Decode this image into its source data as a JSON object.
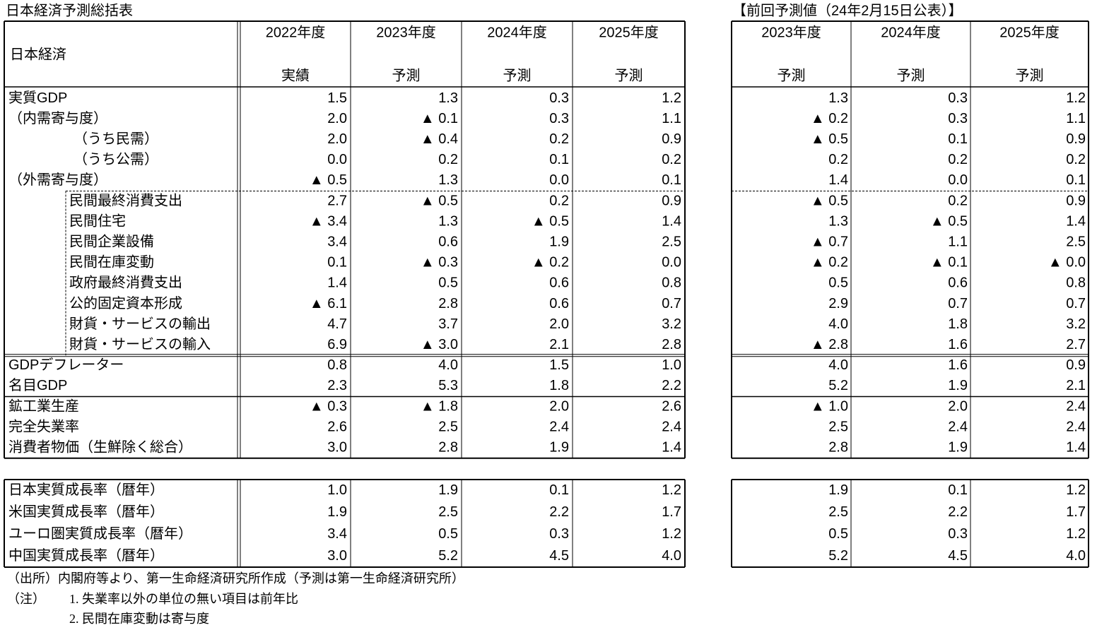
{
  "title": "日本経済予測総括表",
  "main": {
    "corner": "日本経済",
    "years": [
      "2022年度",
      "2023年度",
      "2024年度",
      "2025年度"
    ],
    "kinds": [
      "実績",
      "予測",
      "予測",
      "予測"
    ]
  },
  "previous": {
    "title": "【前回予測値（24年2月15日公表）】",
    "years": [
      "2023年度",
      "2024年度",
      "2025年度"
    ],
    "kinds": [
      "予測",
      "予測",
      "予測"
    ]
  },
  "rows": [
    {
      "label": "実質GDP",
      "values": [
        "1.5",
        "1.3",
        "0.3",
        "1.2"
      ],
      "previous": [
        "1.3",
        "0.3",
        "1.2"
      ]
    },
    {
      "label": "（内需寄与度）",
      "values": [
        "2.0",
        "▲ 0.1",
        "0.3",
        "1.1"
      ],
      "previous": [
        "▲ 0.2",
        "0.3",
        "1.1"
      ]
    },
    {
      "label": "（うち民需）",
      "values": [
        "2.0",
        "▲ 0.4",
        "0.2",
        "0.9"
      ],
      "previous": [
        "▲ 0.5",
        "0.1",
        "0.9"
      ]
    },
    {
      "label": "（うち公需）",
      "values": [
        "0.0",
        "0.2",
        "0.1",
        "0.2"
      ],
      "previous": [
        "0.2",
        "0.2",
        "0.2"
      ]
    },
    {
      "label": "（外需寄与度）",
      "values": [
        "▲ 0.5",
        "1.3",
        "0.0",
        "0.1"
      ],
      "previous": [
        "1.4",
        "0.0",
        "0.1"
      ]
    },
    {
      "label": "民間最終消費支出",
      "values": [
        "2.7",
        "▲ 0.5",
        "0.2",
        "0.9"
      ],
      "previous": [
        "▲ 0.5",
        "0.2",
        "0.9"
      ]
    },
    {
      "label": "民間住宅",
      "values": [
        "▲ 3.4",
        "1.3",
        "▲ 0.5",
        "1.4"
      ],
      "previous": [
        "1.3",
        "▲ 0.5",
        "1.4"
      ]
    },
    {
      "label": "民間企業設備",
      "values": [
        "3.4",
        "0.6",
        "1.9",
        "2.5"
      ],
      "previous": [
        "▲ 0.7",
        "1.1",
        "2.5"
      ]
    },
    {
      "label": "民間在庫変動",
      "values": [
        "0.1",
        "▲ 0.3",
        "▲ 0.2",
        "0.0"
      ],
      "previous": [
        "▲ 0.2",
        "▲ 0.1",
        "▲ 0.0"
      ]
    },
    {
      "label": "政府最終消費支出",
      "values": [
        "1.4",
        "0.5",
        "0.6",
        "0.8"
      ],
      "previous": [
        "0.5",
        "0.6",
        "0.8"
      ]
    },
    {
      "label": "公的固定資本形成",
      "values": [
        "▲ 6.1",
        "2.8",
        "0.6",
        "0.7"
      ],
      "previous": [
        "2.9",
        "0.7",
        "0.7"
      ]
    },
    {
      "label": "財貨・サービスの輸出",
      "values": [
        "4.7",
        "3.7",
        "2.0",
        "3.2"
      ],
      "previous": [
        "4.0",
        "1.8",
        "3.2"
      ]
    },
    {
      "label": "財貨・サービスの輸入",
      "values": [
        "6.9",
        "▲ 3.0",
        "2.1",
        "2.8"
      ],
      "previous": [
        "▲ 2.8",
        "1.6",
        "2.7"
      ]
    },
    {
      "label": "GDPデフレーター",
      "values": [
        "0.8",
        "4.0",
        "1.5",
        "1.0"
      ],
      "previous": [
        "4.0",
        "1.6",
        "0.9"
      ]
    },
    {
      "label": "名目GDP",
      "values": [
        "2.3",
        "5.3",
        "1.8",
        "2.2"
      ],
      "previous": [
        "5.2",
        "1.9",
        "2.1"
      ]
    },
    {
      "label": "鉱工業生産",
      "values": [
        "▲ 0.3",
        "▲ 1.8",
        "2.0",
        "2.6"
      ],
      "previous": [
        "▲ 1.0",
        "2.0",
        "2.4"
      ]
    },
    {
      "label": "完全失業率",
      "values": [
        "2.6",
        "2.5",
        "2.4",
        "2.4"
      ],
      "previous": [
        "2.5",
        "2.4",
        "2.4"
      ]
    },
    {
      "label": "消費者物価（生鮮除く総合）",
      "values": [
        "3.0",
        "2.8",
        "1.9",
        "1.4"
      ],
      "previous": [
        "2.8",
        "1.9",
        "1.4"
      ]
    }
  ],
  "growth_rows": [
    {
      "label": "日本実質成長率（暦年）",
      "values": [
        "1.0",
        "1.9",
        "0.1",
        "1.2"
      ],
      "previous": [
        "1.9",
        "0.1",
        "1.2"
      ]
    },
    {
      "label": "米国実質成長率（暦年）",
      "values": [
        "1.9",
        "2.5",
        "2.2",
        "1.7"
      ],
      "previous": [
        "2.5",
        "2.2",
        "1.7"
      ]
    },
    {
      "label": "ユーロ圏実質成長率（暦年）",
      "values": [
        "3.4",
        "0.5",
        "0.3",
        "1.2"
      ],
      "previous": [
        "0.5",
        "0.3",
        "1.2"
      ]
    },
    {
      "label": "中国実質成長率（暦年）",
      "values": [
        "3.0",
        "5.2",
        "4.5",
        "4.0"
      ],
      "previous": [
        "5.2",
        "4.5",
        "4.0"
      ]
    }
  ],
  "notes": {
    "source": "（出所）内閣府等より、第一生命経済研究所作成（予測は第一生命経済研究所）",
    "note_label": "（注）",
    "items": [
      "1.  失業率以外の単位の無い項目は前年比",
      "2.  民間在庫変動は寄与度"
    ]
  }
}
